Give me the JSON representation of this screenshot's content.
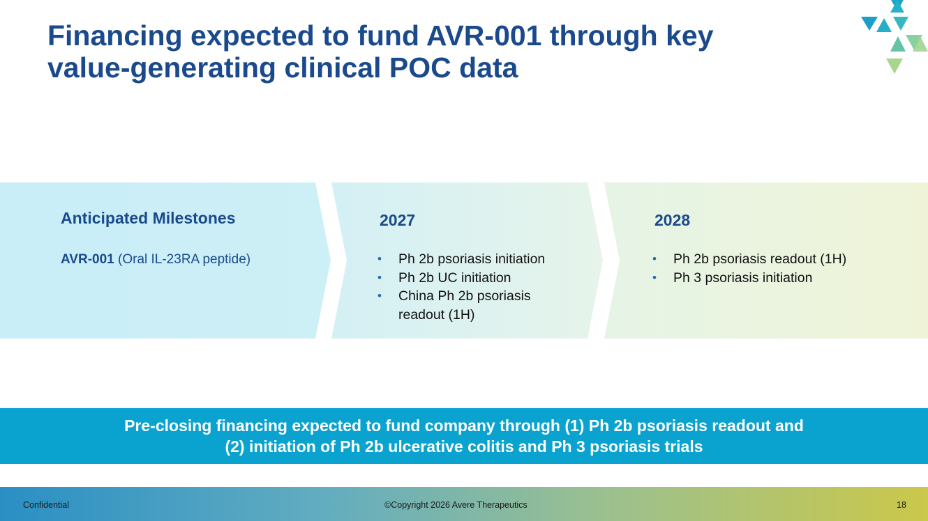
{
  "slide": {
    "title_line1": "Financing expected to fund AVR-001 through key",
    "title_line2": "value-generating clinical POC data"
  },
  "colors": {
    "title": "#1a4a8c",
    "banner": "#0aa3cf",
    "accent_teal": "#29a9c9",
    "accent_green": "#8cc49c"
  },
  "milestones": {
    "heading": "Anticipated Milestones",
    "drug_name": "AVR-001",
    "drug_desc": " (Oral IL-23RA peptide)"
  },
  "col2027": {
    "heading": "2027",
    "items": [
      "Ph 2b psoriasis initiation",
      "Ph 2b UC initiation",
      "China Ph 2b psoriasis readout (1H)"
    ]
  },
  "col2028": {
    "heading": "2028",
    "items": [
      "Ph 2b psoriasis readout (1H)",
      "Ph 3 psoriasis initiation"
    ]
  },
  "banner": {
    "line1": "Pre-closing financing expected to fund company through (1) Ph 2b psoriasis readout and",
    "line2": "(2) initiation of Ph 2b ulcerative colitis and Ph 3 psoriasis trials"
  },
  "footer": {
    "left": "Confidential",
    "center": "©Copyright 2026 Avere Therapeutics",
    "page": "18"
  },
  "bullet_char": "•"
}
